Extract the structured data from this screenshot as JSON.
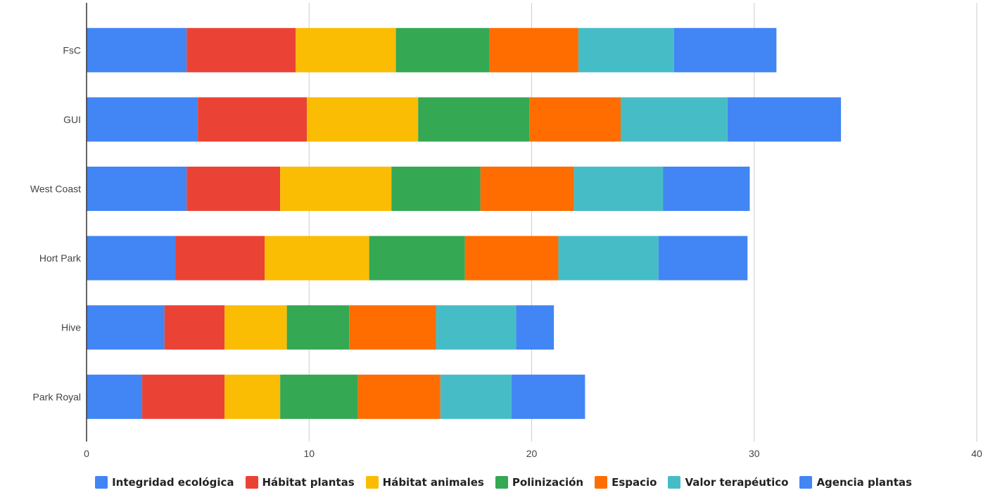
{
  "chart_data": {
    "type": "bar",
    "orientation": "horizontal",
    "stacked": true,
    "title": "",
    "xlabel": "",
    "ylabel": "",
    "xlim": [
      0,
      40
    ],
    "xticks": [
      0,
      10,
      20,
      30,
      40
    ],
    "grid": true,
    "legend_position": "bottom",
    "categories": [
      "FsC",
      "GUI",
      "West Coast",
      "Hort Park",
      "Hive",
      "Park Royal"
    ],
    "series": [
      {
        "name": "Integridad ecológica",
        "color": "#4285f4",
        "values": [
          4.5,
          5.0,
          4.5,
          4.0,
          3.5,
          2.5
        ]
      },
      {
        "name": "Hábitat plantas",
        "color": "#ea4335",
        "values": [
          4.9,
          4.9,
          4.2,
          4.0,
          2.7,
          3.7
        ]
      },
      {
        "name": "Hábitat animales",
        "color": "#fbbc04",
        "values": [
          4.5,
          5.0,
          5.0,
          4.7,
          2.8,
          2.5
        ]
      },
      {
        "name": "Polinización",
        "color": "#34a853",
        "values": [
          4.2,
          5.0,
          4.0,
          4.3,
          2.8,
          3.5
        ]
      },
      {
        "name": "Espacio",
        "color": "#ff6d01",
        "values": [
          4.0,
          4.1,
          4.2,
          4.2,
          3.9,
          3.7
        ]
      },
      {
        "name": "Valor terapéutico",
        "color": "#46bdc6",
        "values": [
          4.3,
          4.8,
          4.0,
          4.5,
          3.6,
          3.2
        ]
      },
      {
        "name": "Agencia plantas",
        "color": "#4285f4",
        "values": [
          4.6,
          5.1,
          3.9,
          4.0,
          1.7,
          3.3
        ]
      }
    ]
  }
}
